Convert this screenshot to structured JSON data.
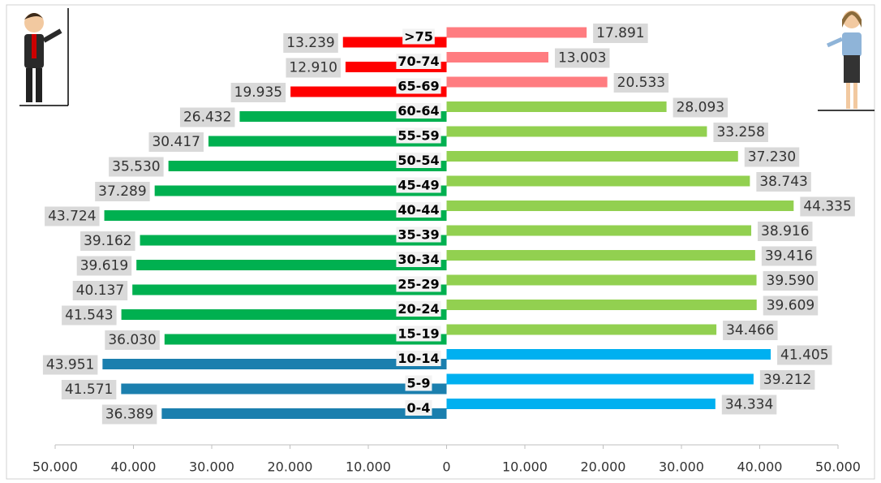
{
  "chart_data": {
    "type": "pyramid",
    "categories": [
      ">75",
      "70-74",
      "65-69",
      "60-64",
      "55-59",
      "50-54",
      "45-49",
      "40-44",
      "35-39",
      "30-34",
      "25-29",
      "20-24",
      "15-19",
      "10-14",
      "5-9",
      "0-4"
    ],
    "series": [
      {
        "side": "left",
        "values": [
          13239,
          12910,
          19935,
          26432,
          30417,
          35530,
          37289,
          43724,
          39162,
          39619,
          40137,
          41543,
          36030,
          43951,
          41571,
          36389
        ],
        "value_labels": [
          "13.239",
          "12.910",
          "19.935",
          "26.432",
          "30.417",
          "35.530",
          "37.289",
          "43.724",
          "39.162",
          "39.619",
          "40.137",
          "41.543",
          "36.030",
          "43.951",
          "41.571",
          "36.389"
        ],
        "colors": [
          "#ff0000",
          "#ff0000",
          "#ff0000",
          "#00b050",
          "#00b050",
          "#00b050",
          "#00b050",
          "#00b050",
          "#00b050",
          "#00b050",
          "#00b050",
          "#00b050",
          "#00b050",
          "#1b7fae",
          "#1b7fae",
          "#1b7fae"
        ]
      },
      {
        "side": "right",
        "values": [
          17891,
          13003,
          20533,
          28093,
          33258,
          37230,
          38743,
          44335,
          38916,
          39416,
          39590,
          39609,
          34466,
          41405,
          39212,
          34334
        ],
        "value_labels": [
          "17.891",
          "13.003",
          "20.533",
          "28.093",
          "33.258",
          "37.230",
          "38.743",
          "44.335",
          "38.916",
          "39.416",
          "39.590",
          "39.609",
          "34.466",
          "41.405",
          "39.212",
          "34.334"
        ],
        "colors": [
          "#ff7c80",
          "#ff7c80",
          "#ff7c80",
          "#92d050",
          "#92d050",
          "#92d050",
          "#92d050",
          "#92d050",
          "#92d050",
          "#92d050",
          "#92d050",
          "#92d050",
          "#92d050",
          "#00b0f0",
          "#00b0f0",
          "#00b0f0"
        ]
      }
    ],
    "xlim": [
      -50000,
      50000
    ],
    "xticks": [
      {
        "value": -50000,
        "label": "50.000"
      },
      {
        "value": -40000,
        "label": "40.000"
      },
      {
        "value": -30000,
        "label": "30.000"
      },
      {
        "value": -20000,
        "label": "20.000"
      },
      {
        "value": -10000,
        "label": "10.000"
      },
      0,
      {
        "value": 10000,
        "label": "10.000"
      },
      {
        "value": 20000,
        "label": "20.000"
      },
      {
        "value": 30000,
        "label": "30.000"
      },
      {
        "value": 40000,
        "label": "40.000"
      },
      {
        "value": 50000,
        "label": "50.000"
      }
    ]
  }
}
